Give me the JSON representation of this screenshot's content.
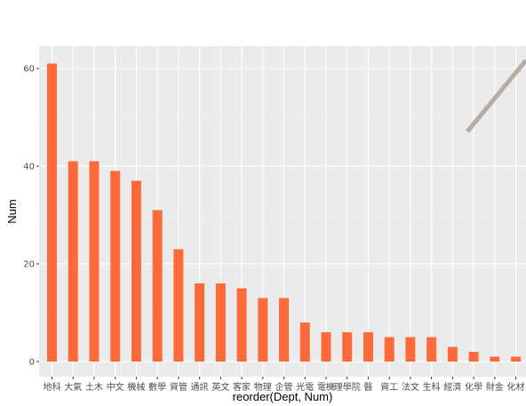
{
  "chart_data": {
    "type": "bar",
    "xlabel": "reorder(Dept, Num)",
    "ylabel": "Num",
    "categories": [
      "地科",
      "大氣",
      "土木",
      "中文",
      "機械",
      "數學",
      "資管",
      "通訊",
      "英文",
      "客家",
      "物理",
      "企管",
      "光電",
      "電機",
      "理學院",
      "醫",
      "資工",
      "法文",
      "生科",
      "經濟",
      "化學",
      "財金",
      "化材"
    ],
    "values": [
      61,
      41,
      41,
      39,
      37,
      31,
      23,
      16,
      16,
      15,
      13,
      13,
      8,
      6,
      6,
      6,
      5,
      5,
      5,
      3,
      2,
      1,
      1
    ],
    "y_ticks": [
      0,
      20,
      40,
      60
    ],
    "ylim": [
      -2.5,
      64
    ],
    "grid": true,
    "colors": {
      "bar": "#ff6a3a",
      "panel": "#ebebeb",
      "grid_major": "#ffffff",
      "grid_minor": "#f4f4f4",
      "decoration_line": "#b5ada4"
    }
  }
}
